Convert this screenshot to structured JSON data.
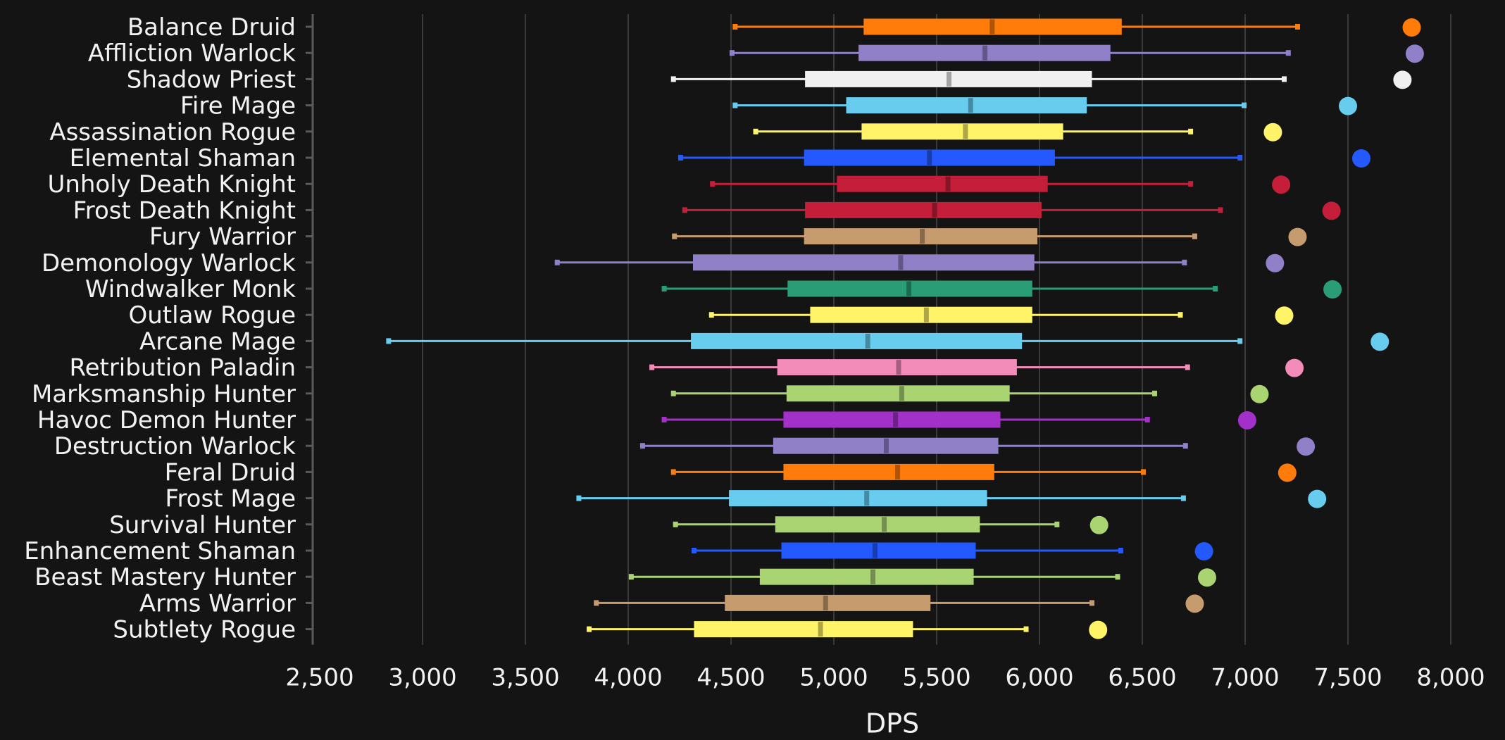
{
  "chart_data": {
    "type": "box",
    "title": "",
    "xlabel": "DPS",
    "ylabel": "",
    "xlim": [
      2500,
      8000
    ],
    "xticks": [
      2500,
      3000,
      3500,
      4000,
      4500,
      5000,
      5500,
      6000,
      6500,
      7000,
      7500,
      8000
    ],
    "xtick_labels": [
      "2,500",
      "3,000",
      "3,500",
      "4,000",
      "4,500",
      "5,000",
      "5,500",
      "6,000",
      "6,500",
      "7,000",
      "7,500",
      "8,000"
    ],
    "grid": "vertical",
    "background": "#141414",
    "categories": [
      "Balance Druid",
      "Affliction Warlock",
      "Shadow Priest",
      "Fire Mage",
      "Assassination Rogue",
      "Elemental Shaman",
      "Unholy Death Knight",
      "Frost Death Knight",
      "Fury Warrior",
      "Demonology Warlock",
      "Windwalker Monk",
      "Outlaw Rogue",
      "Arcane Mage",
      "Retribution Paladin",
      "Marksmanship Hunter",
      "Havoc Demon Hunter",
      "Destruction Warlock",
      "Feral Druid",
      "Frost Mage",
      "Survival Hunter",
      "Enhancement Shaman",
      "Beast Mastery Hunter",
      "Arms Warrior",
      "Subtlety Rogue"
    ],
    "colors": [
      "#ff7c0a",
      "#8f80c8",
      "#f0f0f0",
      "#68ccef",
      "#fff468",
      "#2359ff",
      "#c41e3a",
      "#c41e3a",
      "#c69b6d",
      "#8f80c8",
      "#2a9d76",
      "#fff468",
      "#68ccef",
      "#f48cba",
      "#aad372",
      "#a330c9",
      "#8f80c8",
      "#ff7c0a",
      "#68ccef",
      "#aad372",
      "#2359ff",
      "#aad372",
      "#c69b6d",
      "#fff468"
    ],
    "series": [
      {
        "min": 4520,
        "q1": 5145,
        "median": 5770,
        "q3": 6400,
        "max": 7255,
        "max_point": 7810
      },
      {
        "min": 4505,
        "q1": 5120,
        "median": 5735,
        "q3": 6345,
        "max": 7210,
        "max_point": 7825
      },
      {
        "min": 4220,
        "q1": 4860,
        "median": 5560,
        "q3": 6255,
        "max": 7190,
        "max_point": 7765
      },
      {
        "min": 4520,
        "q1": 5060,
        "median": 5665,
        "q3": 6230,
        "max": 6995,
        "max_point": 7500
      },
      {
        "min": 4620,
        "q1": 5135,
        "median": 5640,
        "q3": 6115,
        "max": 6735,
        "max_point": 7135
      },
      {
        "min": 4255,
        "q1": 4855,
        "median": 5465,
        "q3": 6075,
        "max": 6975,
        "max_point": 7565
      },
      {
        "min": 4410,
        "q1": 5015,
        "median": 5555,
        "q3": 6040,
        "max": 6735,
        "max_point": 7175
      },
      {
        "min": 4275,
        "q1": 4860,
        "median": 5490,
        "q3": 6010,
        "max": 6880,
        "max_point": 7420
      },
      {
        "min": 4225,
        "q1": 4855,
        "median": 5430,
        "q3": 5990,
        "max": 6755,
        "max_point": 7255
      },
      {
        "min": 3655,
        "q1": 4315,
        "median": 5325,
        "q3": 5975,
        "max": 6705,
        "max_point": 7145
      },
      {
        "min": 4175,
        "q1": 4775,
        "median": 5365,
        "q3": 5965,
        "max": 6855,
        "max_point": 7425
      },
      {
        "min": 4405,
        "q1": 4885,
        "median": 5450,
        "q3": 5965,
        "max": 6685,
        "max_point": 7190
      },
      {
        "min": 2835,
        "q1": 4305,
        "median": 5165,
        "q3": 5915,
        "max": 6975,
        "max_point": 7655
      },
      {
        "min": 4115,
        "q1": 4725,
        "median": 5315,
        "q3": 5890,
        "max": 6720,
        "max_point": 7240
      },
      {
        "min": 4220,
        "q1": 4770,
        "median": 5330,
        "q3": 5855,
        "max": 6560,
        "max_point": 7070
      },
      {
        "min": 4175,
        "q1": 4755,
        "median": 5300,
        "q3": 5810,
        "max": 6525,
        "max_point": 7010
      },
      {
        "min": 4070,
        "q1": 4705,
        "median": 5255,
        "q3": 5800,
        "max": 6710,
        "max_point": 7295
      },
      {
        "min": 4220,
        "q1": 4755,
        "median": 5310,
        "q3": 5780,
        "max": 6505,
        "max_point": 7205
      },
      {
        "min": 3760,
        "q1": 4490,
        "median": 5160,
        "q3": 5745,
        "max": 6700,
        "max_point": 7350
      },
      {
        "min": 4230,
        "q1": 4715,
        "median": 5245,
        "q3": 5710,
        "max": 6085,
        "max_point": 6290
      },
      {
        "min": 4320,
        "q1": 4745,
        "median": 5200,
        "q3": 5690,
        "max": 6395,
        "max_point": 6800
      },
      {
        "min": 4015,
        "q1": 4640,
        "median": 5190,
        "q3": 5680,
        "max": 6380,
        "max_point": 6815
      },
      {
        "min": 3845,
        "q1": 4470,
        "median": 4960,
        "q3": 5470,
        "max": 6255,
        "max_point": 6755
      },
      {
        "min": 3810,
        "q1": 4320,
        "median": 4935,
        "q3": 5385,
        "max": 5935,
        "max_point": 6285
      }
    ]
  }
}
